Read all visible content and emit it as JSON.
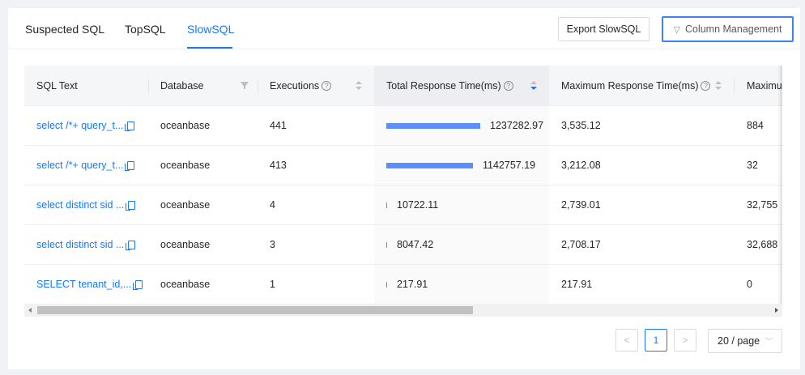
{
  "tabs": [
    {
      "label": "Suspected SQL"
    },
    {
      "label": "TopSQL"
    },
    {
      "label": "SlowSQL"
    }
  ],
  "active_tab": "SlowSQL",
  "toolbar": {
    "export_label": "Export SlowSQL",
    "column_mgmt_label": "Column Management"
  },
  "table": {
    "columns": [
      {
        "label": "SQL Text"
      },
      {
        "label": "Database"
      },
      {
        "label": "Executions"
      },
      {
        "label": "Total Response Time(ms)"
      },
      {
        "label": "Maximum Response Time(ms)"
      },
      {
        "label": "Maximu"
      }
    ],
    "sort": {
      "column": "Total Response Time(ms)",
      "order": "descending"
    },
    "rows": [
      {
        "sql": "select /*+ query_t...",
        "database": "oceanbase",
        "executions": "441",
        "total": "1237282.97",
        "total_ratio": 1.0,
        "max": "3,535.12",
        "maxcol": "884"
      },
      {
        "sql": "select /*+ query_t...",
        "database": "oceanbase",
        "executions": "413",
        "total": "1142757.19",
        "total_ratio": 0.924,
        "max": "3,212.08",
        "maxcol": "32"
      },
      {
        "sql": "select distinct sid ...",
        "database": "oceanbase",
        "executions": "4",
        "total": "10722.11",
        "total_ratio": 0.0087,
        "max": "2,739.01",
        "maxcol": "32,755"
      },
      {
        "sql": "select distinct sid ...",
        "database": "oceanbase",
        "executions": "3",
        "total": "8047.42",
        "total_ratio": 0.0065,
        "max": "2,708.17",
        "maxcol": "32,688"
      },
      {
        "sql": "SELECT tenant_id,...",
        "database": "oceanbase",
        "executions": "1",
        "total": "217.91",
        "total_ratio": 0.0002,
        "max": "217.91",
        "maxcol": "0"
      }
    ]
  },
  "pagination": {
    "prev_icon": "<",
    "current_page": "1",
    "next_icon": ">",
    "page_size": "20 / page"
  },
  "colors": {
    "accent": "#1677ff",
    "bar": "#5b8ff9"
  }
}
